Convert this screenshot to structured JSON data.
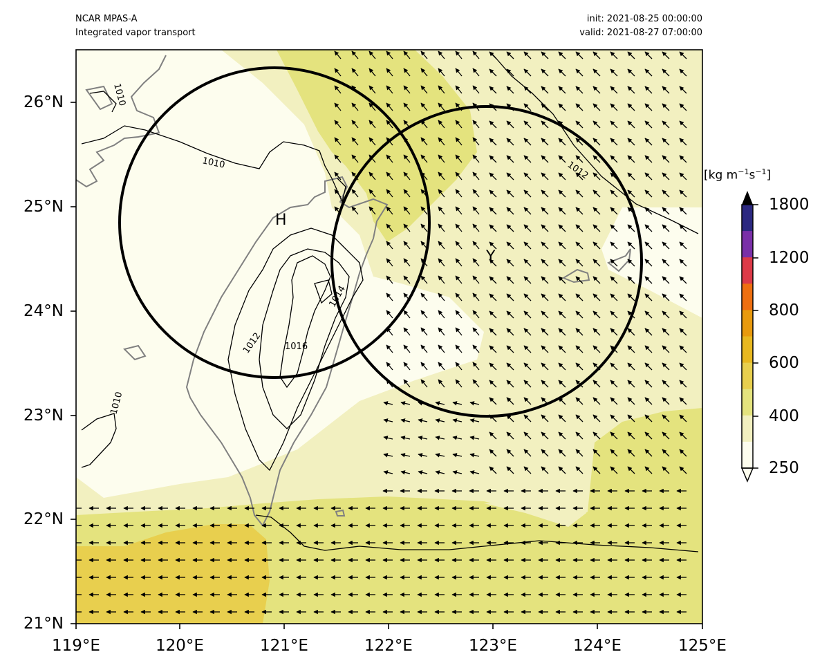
{
  "header": {
    "model": "NCAR MPAS-A",
    "field": "Integrated vapor transport",
    "init": "init: 2021-08-25 00:00:00",
    "valid": "valid: 2021-08-27 07:00:00"
  },
  "axes": {
    "x_ticks": [
      "119°E",
      "120°E",
      "121°E",
      "122°E",
      "123°E",
      "124°E",
      "125°E"
    ],
    "y_ticks": [
      "26°N",
      "25°N",
      "24°N",
      "23°N",
      "22°N",
      "21°N"
    ],
    "lon_range": [
      119,
      125
    ],
    "lat_range": [
      21,
      26.5
    ]
  },
  "colorbar": {
    "unit_base": "[kg m",
    "unit_exp1": "−1",
    "unit_mid": "s",
    "unit_exp2": "−1",
    "unit_end": "]",
    "tick_labels": [
      "1800",
      "1200",
      "800",
      "600",
      "400",
      "250"
    ],
    "colors": [
      "#fdfdee",
      "#f2f0c0",
      "#e4e37e",
      "#e8cf4e",
      "#e8b820",
      "#e89a0e",
      "#ee6f10",
      "#dc3a48",
      "#7a30a8",
      "#2c2880"
    ],
    "extend": "both"
  },
  "map_labels": {
    "high": "H",
    "typhoon": "Y",
    "isobars": [
      "1010",
      "1010",
      "1010",
      "1012",
      "1012",
      "1014",
      "1016"
    ]
  },
  "circles": [
    {
      "center_lon": 120.9,
      "center_lat": 24.85,
      "note": "circle around H"
    },
    {
      "center_lon": 122.95,
      "center_lat": 24.47,
      "note": "circle around Y"
    }
  ],
  "colors": {
    "isobar": "#000000",
    "coastline": "#808080",
    "circle": "#000000"
  }
}
